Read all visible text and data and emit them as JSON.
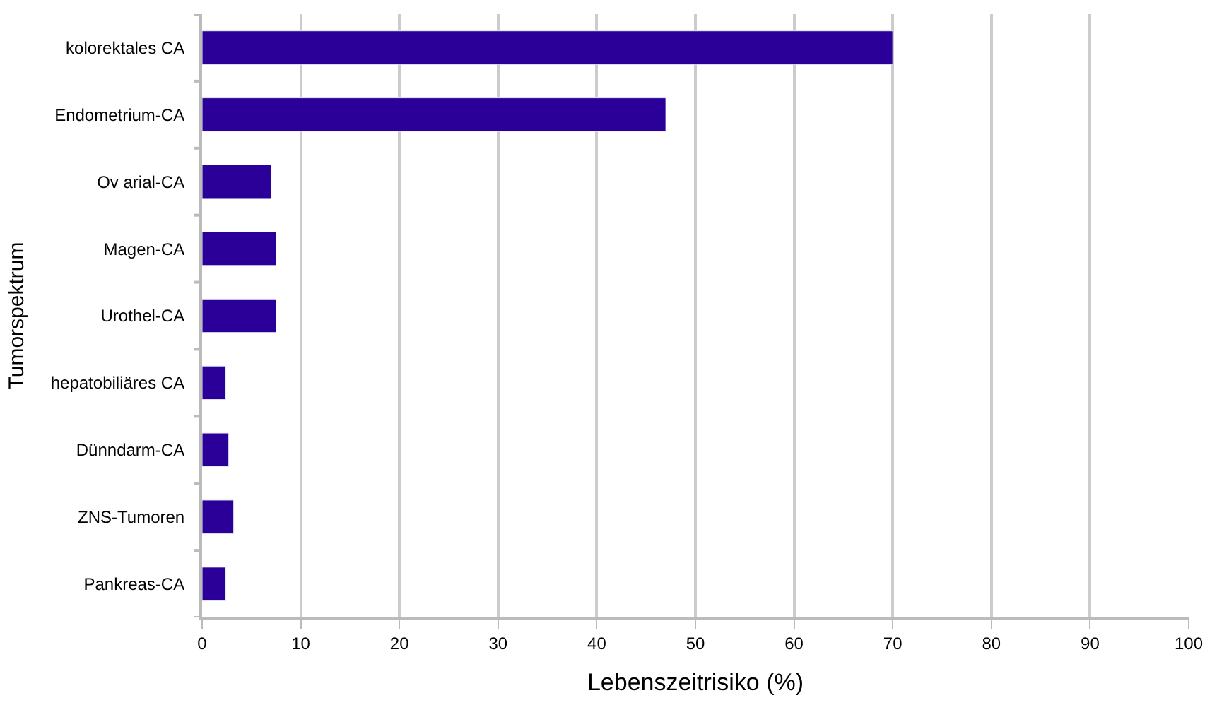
{
  "chart_data": {
    "type": "bar",
    "orientation": "horizontal",
    "categories": [
      "kolorektales CA",
      "Endometrium-CA",
      "Ov arial-CA",
      "Magen-CA",
      "Urothel-CA",
      "hepatobiliäres CA",
      "Dünndarm-CA",
      "ZNS-Tumoren",
      "Pankreas-CA"
    ],
    "values": [
      70,
      47,
      7,
      7.5,
      7.5,
      2.4,
      2.7,
      3.2,
      2.4
    ],
    "color": "#2a0099",
    "xlabel": "Lebenszeitrisiko (%)",
    "ylabel": "Tumorspektrum",
    "xlim": [
      0,
      100
    ],
    "xticks": [
      0,
      10,
      20,
      30,
      40,
      50,
      60,
      70,
      80,
      90,
      100
    ],
    "grid": "x"
  }
}
